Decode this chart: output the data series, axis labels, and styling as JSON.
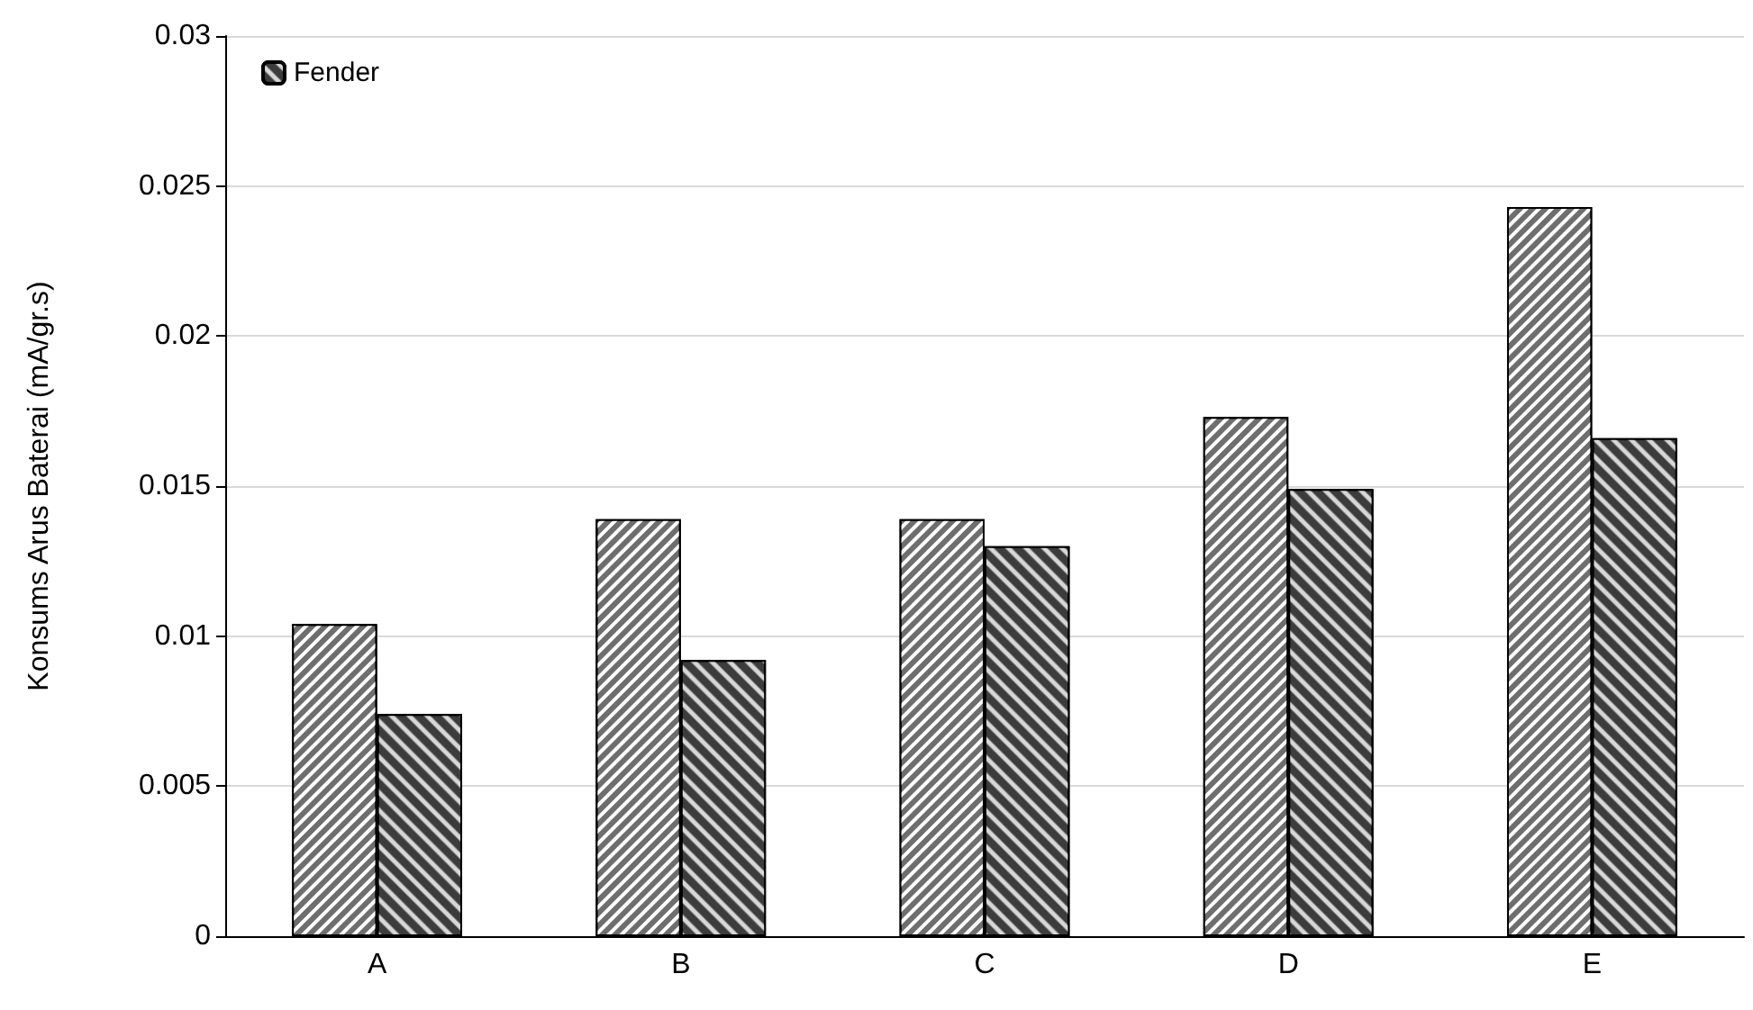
{
  "chart_data": {
    "type": "bar",
    "ylabel": "Konsums Arus Baterai (mA/gr.s)",
    "categories": [
      "A",
      "B",
      "C",
      "D",
      "E"
    ],
    "series": [
      {
        "color": "#6e6e6e",
        "values": [
          0.0104,
          0.0139,
          0.0139,
          0.0173,
          0.0243
        ]
      },
      {
        "name": "Fender",
        "color": "#3c3c3c",
        "values": [
          0.0074,
          0.0092,
          0.013,
          0.0149,
          0.0166
        ]
      }
    ],
    "ylim": [
      0,
      0.03
    ],
    "yticks": [
      0,
      0.005,
      0.01,
      0.015,
      0.02,
      0.025,
      0.03
    ],
    "grid": "y",
    "legend": "top left"
  }
}
